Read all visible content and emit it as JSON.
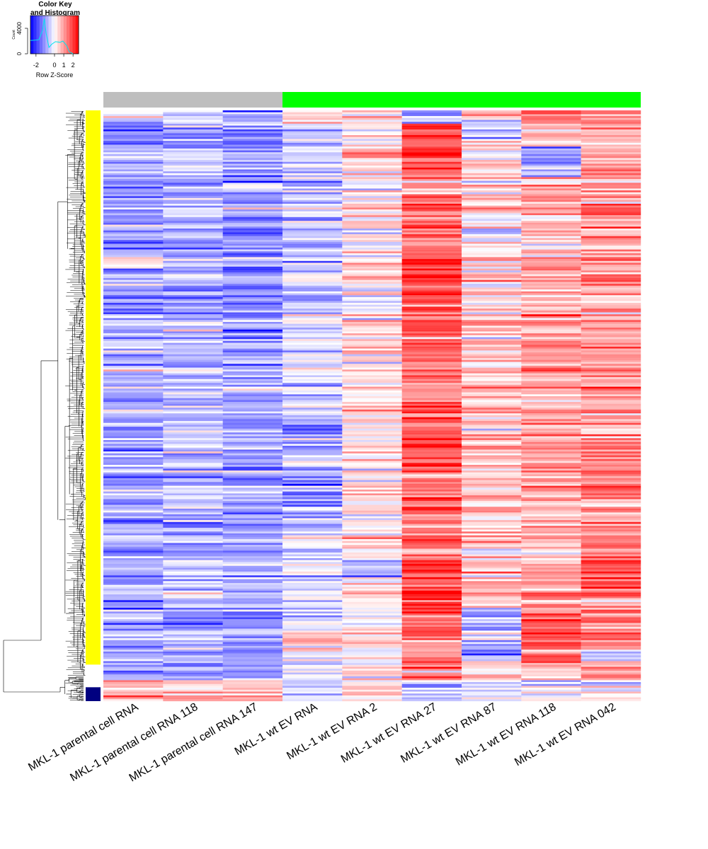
{
  "chart_data": {
    "type": "heatmap",
    "color_key": {
      "title_line1": "Color Key",
      "title_line2": "and Histogram",
      "xlabel": "Row Z-Score",
      "ylabel": "Count",
      "x_ticks": [
        "-2",
        "0",
        "1",
        "2"
      ],
      "x_tick_values": [
        -2,
        0,
        1,
        2
      ],
      "y_ticks": [
        "0",
        "4000"
      ],
      "y_tick_values": [
        0,
        4000
      ],
      "range": [
        -2.6,
        2.6
      ],
      "ylim": [
        0,
        6000
      ],
      "histogram_color": "#00e5ee",
      "histogram_curve": [
        {
          "z": -2.6,
          "count": 2100
        },
        {
          "z": -2.4,
          "count": 2100
        },
        {
          "z": -1.7,
          "count": 2200
        },
        {
          "z": -1.3,
          "count": 3600
        },
        {
          "z": -1.1,
          "count": 5500
        },
        {
          "z": -0.9,
          "count": 3200
        },
        {
          "z": -0.6,
          "count": 1000
        },
        {
          "z": -0.3,
          "count": 1500
        },
        {
          "z": 0.1,
          "count": 1900
        },
        {
          "z": 0.6,
          "count": 1800
        },
        {
          "z": 0.9,
          "count": 2000
        },
        {
          "z": 1.3,
          "count": 1300
        },
        {
          "z": 1.6,
          "count": 300
        },
        {
          "z": 2.0,
          "count": 0
        }
      ]
    },
    "color_scale": {
      "low": "#0000ff",
      "mid": "#ffffff",
      "high": "#ff0000"
    },
    "columns": [
      "MKL-1 parental cell RNA",
      "MKL-1 parental cell RNA 118",
      "MKL-1 parental cell RNA 147",
      "MKL-1 wt EV RNA",
      "MKL-1 wt EV RNA 2",
      "MKL-1 wt EV RNA 27",
      "MKL-1 wt EV RNA 87",
      "MKL-1 wt EV RNA 118",
      "MKL-1 wt EV RNA 042"
    ],
    "column_groups": [
      {
        "color": "#bebebe",
        "columns": [
          0,
          1,
          2
        ]
      },
      {
        "color": "#00ff00",
        "columns": [
          3,
          4,
          5,
          6,
          7,
          8
        ]
      }
    ],
    "row_clusters": [
      {
        "color": "#ffff00",
        "fraction": 0.965
      },
      {
        "color": "#000080",
        "fraction": 0.035
      }
    ],
    "column_z_means": {
      "cluster_main": [
        -0.9,
        -0.8,
        -1.0,
        -0.45,
        0.2,
        1.5,
        0.5,
        0.8,
        1.0
      ],
      "cluster_minor": [
        0.8,
        0.7,
        0.7,
        -0.6,
        0.2,
        -0.5,
        -0.3,
        -0.3,
        -0.2
      ]
    },
    "row_blocks": [
      {
        "col": 0,
        "from": 0.0,
        "to": 0.01,
        "z": 0.2
      },
      {
        "col": 0,
        "from": 0.24,
        "to": 0.26,
        "z": -0.4
      },
      {
        "col": 1,
        "from": 0.12,
        "to": 0.15,
        "z": -0.4
      },
      {
        "col": 2,
        "from": 0.12,
        "to": 0.15,
        "z": -0.4
      },
      {
        "col": 2,
        "from": 0.26,
        "to": 0.31,
        "z": -1.3
      },
      {
        "col": 2,
        "from": 0.49,
        "to": 0.52,
        "z": -1.3
      },
      {
        "col": 2,
        "from": 0.64,
        "to": 0.66,
        "z": -1.2
      },
      {
        "col": 2,
        "from": 0.84,
        "to": 0.92,
        "z": -1.1
      },
      {
        "col": 3,
        "from": 0.0,
        "to": 0.02,
        "z": 0.3
      },
      {
        "col": 3,
        "from": 0.52,
        "to": 0.58,
        "z": -1.0
      },
      {
        "col": 3,
        "from": 0.62,
        "to": 0.67,
        "z": -1.1
      },
      {
        "col": 3,
        "from": 0.88,
        "to": 0.92,
        "z": 0.3
      },
      {
        "col": 4,
        "from": 0.06,
        "to": 0.09,
        "z": 0.7
      },
      {
        "col": 4,
        "from": 0.76,
        "to": 0.79,
        "z": -0.9
      },
      {
        "col": 4,
        "from": 0.9,
        "to": 0.93,
        "z": 0.4
      },
      {
        "col": 5,
        "from": 0.0,
        "to": 0.02,
        "z": -0.8
      },
      {
        "col": 5,
        "from": 0.02,
        "to": 0.09,
        "z": 2.0
      },
      {
        "col": 5,
        "from": 0.24,
        "to": 0.34,
        "z": 1.9
      },
      {
        "col": 5,
        "from": 0.76,
        "to": 0.85,
        "z": 2.0
      },
      {
        "col": 6,
        "from": 0.01,
        "to": 0.05,
        "z": -0.6
      },
      {
        "col": 6,
        "from": 0.17,
        "to": 0.22,
        "z": -0.2
      },
      {
        "col": 6,
        "from": 0.84,
        "to": 0.93,
        "z": -0.9
      },
      {
        "col": 7,
        "from": 0.0,
        "to": 0.02,
        "z": 1.5
      },
      {
        "col": 7,
        "from": 0.06,
        "to": 0.11,
        "z": -1.0
      },
      {
        "col": 7,
        "from": 0.84,
        "to": 0.93,
        "z": 1.6
      },
      {
        "col": 8,
        "from": 0.12,
        "to": 0.18,
        "z": 1.5
      },
      {
        "col": 8,
        "from": 0.73,
        "to": 0.82,
        "z": 1.6
      },
      {
        "col": 8,
        "from": 0.91,
        "to": 0.93,
        "z": -0.6
      }
    ]
  }
}
